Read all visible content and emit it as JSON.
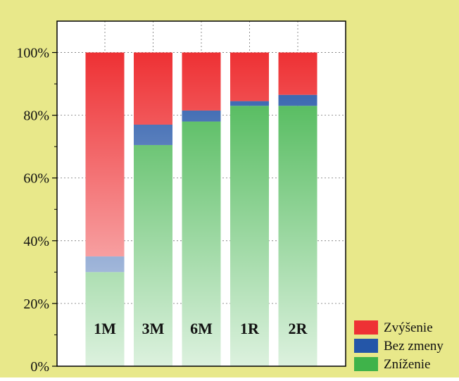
{
  "chart_data": {
    "type": "bar",
    "stacked": true,
    "categories": [
      "1M",
      "3M",
      "6M",
      "1R",
      "2R"
    ],
    "series": [
      {
        "name": "Zníženie",
        "values": [
          30,
          70.5,
          78,
          83,
          83
        ],
        "color": "#3fb34a"
      },
      {
        "name": "Bez zmeny",
        "values": [
          5,
          6.5,
          3.5,
          1.5,
          3.5
        ],
        "color": "#2456a8"
      },
      {
        "name": "Zvýšenie",
        "values": [
          65,
          23,
          18.5,
          15.5,
          13.5
        ],
        "color": "#ee3134"
      }
    ],
    "legend_order": [
      "Zvýšenie",
      "Bez zmeny",
      "Zníženie"
    ],
    "y_ticks": [
      "0%",
      "20%",
      "40%",
      "60%",
      "80%",
      "100%"
    ],
    "ylim": [
      0,
      110
    ],
    "grid": true,
    "legend_position": "bottom-right",
    "background_color": "#e8e88a",
    "plot_background": "#ffffff"
  }
}
